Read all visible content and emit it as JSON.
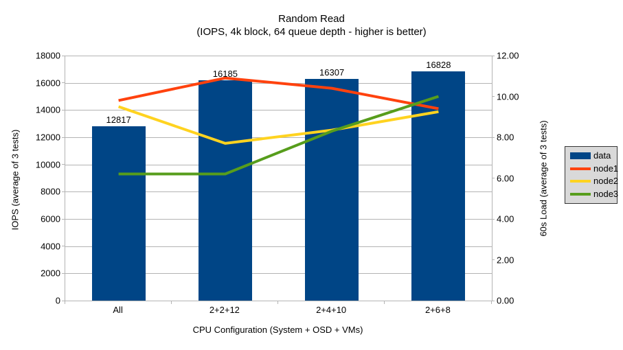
{
  "chart_data": {
    "type": "bar+line",
    "title": "Random Read",
    "subtitle": "(IOPS, 4k block, 64 queue depth - higher is better)",
    "categories": [
      "All",
      "2+2+12",
      "2+4+10",
      "2+6+8"
    ],
    "xlabel": "CPU Configuration (System + OSD + VMs)",
    "left_axis": {
      "label": "IOPS (average of 3 tests)",
      "min": 0,
      "max": 18000,
      "step": 2000,
      "tick_labels": [
        "0",
        "2000",
        "4000",
        "6000",
        "8000",
        "10000",
        "12000",
        "14000",
        "16000",
        "18000"
      ]
    },
    "right_axis": {
      "label": "60s Load (average of 3 tests)",
      "min": 0,
      "max": 12,
      "step": 2,
      "tick_labels": [
        "0.00",
        "2.00",
        "4.00",
        "6.00",
        "8.00",
        "10.00",
        "12.00"
      ]
    },
    "bar_series": {
      "name": "data",
      "color": "#004586",
      "axis": "left",
      "values": [
        12817,
        16185,
        16307,
        16828
      ],
      "value_labels": [
        "12817",
        "16185",
        "16307",
        "16828"
      ]
    },
    "line_series": [
      {
        "name": "node1",
        "color": "#ff420e",
        "axis": "right",
        "values": [
          9.8,
          10.9,
          10.4,
          9.4
        ]
      },
      {
        "name": "node2",
        "color": "#ffd320",
        "axis": "right",
        "values": [
          9.5,
          7.7,
          8.35,
          9.25
        ]
      },
      {
        "name": "node3",
        "color": "#579d1c",
        "axis": "right",
        "values": [
          6.2,
          6.2,
          8.3,
          10.0
        ]
      }
    ],
    "legend": {
      "position": "right",
      "entries": [
        {
          "label": "data",
          "color": "#004586",
          "swatch": "box"
        },
        {
          "label": "node1",
          "color": "#ff420e",
          "swatch": "line"
        },
        {
          "label": "node2",
          "color": "#ffd320",
          "swatch": "line"
        },
        {
          "label": "node3",
          "color": "#579d1c",
          "swatch": "line"
        }
      ]
    },
    "grid": true
  },
  "colors": {
    "background": "#ffffff",
    "axis": "#b3b3b3",
    "gridline": "#b3b3b3",
    "text": "#000000",
    "legend_background": "#d9d9d9",
    "legend_border": "#333333"
  }
}
